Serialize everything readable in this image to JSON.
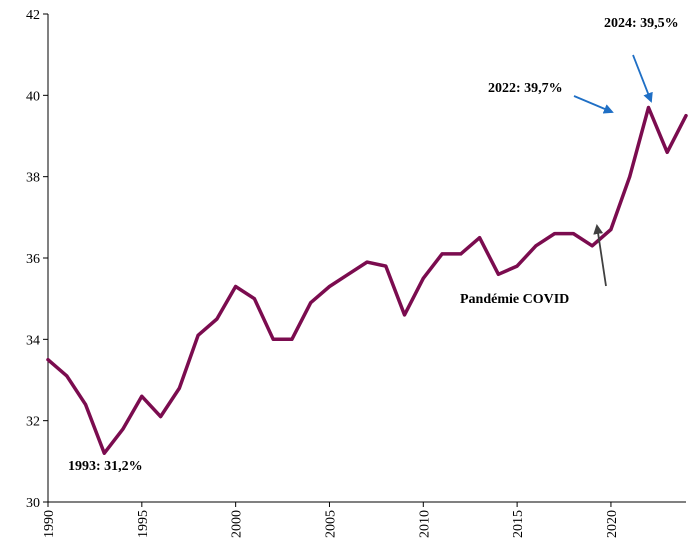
{
  "chart_data": {
    "type": "line",
    "title": "",
    "xlabel": "",
    "ylabel": "",
    "xlim": [
      1990,
      2024
    ],
    "ylim": [
      30,
      42
    ],
    "grid": false,
    "legend": "none",
    "y_ticks": [
      30,
      32,
      34,
      36,
      38,
      40,
      42
    ],
    "y_tick_labels": [
      "30",
      "32",
      "34",
      "36",
      "38",
      "40",
      "42"
    ],
    "x_ticks": [
      1990,
      1995,
      2000,
      2005,
      2010,
      2015,
      2020
    ],
    "x_tick_labels": [
      "1990",
      "1995",
      "2000",
      "2005",
      "2010",
      "2015",
      "2020"
    ],
    "line_color": "#7b0c4f",
    "series": [
      {
        "x": [
          1990,
          1991,
          1992,
          1993,
          1994,
          1995,
          1996,
          1997,
          1998,
          1999,
          2000,
          2001,
          2002,
          2003,
          2004,
          2005,
          2006,
          2007,
          2008,
          2009,
          2010,
          2011,
          2012,
          2013,
          2014,
          2015,
          2016,
          2017,
          2018,
          2019,
          2020,
          2021,
          2022,
          2023,
          2024
        ],
        "values": [
          33.5,
          33.1,
          32.4,
          31.2,
          31.8,
          32.6,
          32.1,
          32.8,
          34.1,
          34.5,
          35.3,
          35.0,
          34.0,
          34.0,
          34.9,
          35.3,
          35.6,
          35.9,
          35.8,
          34.6,
          35.5,
          36.1,
          36.1,
          36.5,
          35.6,
          35.8,
          36.3,
          36.6,
          36.6,
          36.3,
          36.7,
          38.0,
          39.7,
          38.6,
          39.5
        ]
      }
    ],
    "annotations": [
      {
        "text": "1993: 31,2%",
        "x": 1993,
        "y": 31.2,
        "arrow": false,
        "arrow_color": ""
      },
      {
        "text": "2022: 39,7%",
        "x": 2022,
        "y": 39.6,
        "arrow": true,
        "arrow_color": "#1f6fc5"
      },
      {
        "text": "2024: 39,5%",
        "x": 2023.2,
        "y": 39.8,
        "arrow": true,
        "arrow_color": "#1f6fc5"
      },
      {
        "text": "Pandémie COVID",
        "x": 2020.3,
        "y": 36.8,
        "arrow": true,
        "arrow_color": "#404040"
      }
    ]
  }
}
